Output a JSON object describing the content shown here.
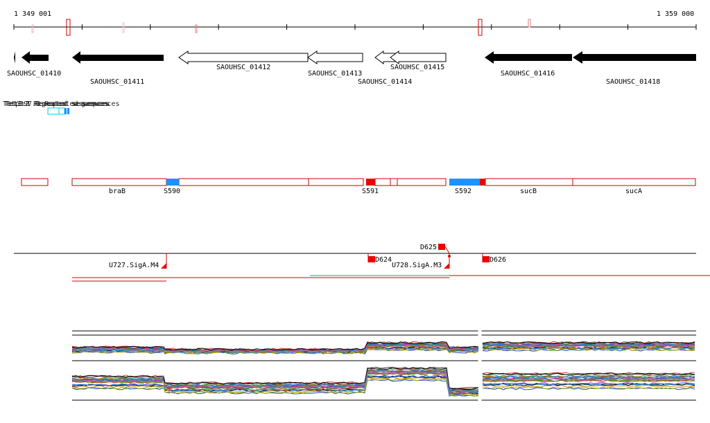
{
  "ruler": {
    "start_label": "1 349 001",
    "end_label": "1 359 000"
  },
  "genes": [
    {
      "name": "SAOUHSC_01410",
      "strand": "-",
      "filled": true
    },
    {
      "name": "SAOUHSC_01411",
      "strand": "-",
      "filled": true
    },
    {
      "name": "SAOUHSC_01412",
      "strand": "-",
      "filled": false
    },
    {
      "name": "SAOUHSC_01413",
      "strand": "-",
      "filled": false
    },
    {
      "name": "SAOUHSC_01414",
      "strand": "-",
      "filled": false
    },
    {
      "name": "SAOUHSC_01415",
      "strand": "-",
      "filled": false
    },
    {
      "name": "SAOUHSC_01416",
      "strand": "-",
      "filled": true
    },
    {
      "name": "SAOUHSC_01418",
      "strand": "-",
      "filled": true
    }
  ],
  "repeat_track": {
    "labels": [
      "Tetp397.3 Repeated sequences",
      "Tet3:2 Repeated sequences",
      "Tet3:1 Repeated sequences"
    ]
  },
  "segments": {
    "names": [
      "braB",
      "S590",
      "S591",
      "S592",
      "sucB",
      "sucA"
    ]
  },
  "promoters": {
    "labels": [
      "D625",
      "D624",
      "D626",
      "U727.SigA.M4",
      "U728.SigA.M3"
    ]
  },
  "colors": {
    "gene_filled": "#000000",
    "segment_outline": "#cc0000",
    "segment_blue": "#1e90ff",
    "segment_red": "#ee0000",
    "repeat": "#00ccee",
    "expr_red": "#cc0000",
    "expr_green": "#22aa22"
  }
}
